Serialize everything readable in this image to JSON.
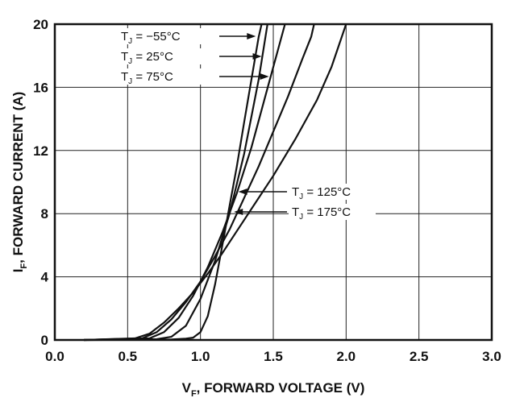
{
  "chart_data": {
    "type": "line",
    "xlabel_main": "V",
    "xlabel_sub": "F",
    "xlabel_rest": ", FORWARD VOLTAGE (V)",
    "ylabel_main": "I",
    "ylabel_sub": "F",
    "ylabel_rest": ", FORWARD CURRENT (A)",
    "xlim": [
      0,
      3.0
    ],
    "ylim": [
      0,
      20
    ],
    "x_ticks": [
      "0.0",
      "0.5",
      "1.0",
      "1.5",
      "2.0",
      "2.5",
      "3.0"
    ],
    "y_ticks": [
      "0",
      "4",
      "8",
      "12",
      "16",
      "20"
    ],
    "grid": true,
    "series": [
      {
        "name_main": "T",
        "name_sub": "J",
        "name_rest": " = −55°C",
        "points": [
          [
            0.2,
            0
          ],
          [
            0.8,
            0.03
          ],
          [
            0.9,
            0.08
          ],
          [
            0.95,
            0.15
          ],
          [
            1.0,
            0.5
          ],
          [
            1.05,
            1.5
          ],
          [
            1.1,
            3.5
          ],
          [
            1.15,
            6.0
          ],
          [
            1.2,
            8.5
          ],
          [
            1.25,
            11.0
          ],
          [
            1.3,
            13.8
          ],
          [
            1.35,
            16.5
          ],
          [
            1.4,
            19.2
          ],
          [
            1.42,
            20
          ]
        ]
      },
      {
        "name_main": "T",
        "name_sub": "J",
        "name_rest": " = 25°C",
        "points": [
          [
            0.2,
            0
          ],
          [
            0.7,
            0.05
          ],
          [
            0.8,
            0.2
          ],
          [
            0.9,
            0.9
          ],
          [
            1.0,
            2.6
          ],
          [
            1.1,
            5.0
          ],
          [
            1.2,
            8.0
          ],
          [
            1.3,
            11.8
          ],
          [
            1.4,
            16.5
          ],
          [
            1.46,
            20
          ]
        ]
      },
      {
        "name_main": "T",
        "name_sub": "J",
        "name_rest": " = 75°C",
        "points": [
          [
            0.2,
            0
          ],
          [
            0.65,
            0.1
          ],
          [
            0.75,
            0.5
          ],
          [
            0.85,
            1.4
          ],
          [
            0.95,
            2.8
          ],
          [
            1.05,
            4.6
          ],
          [
            1.15,
            6.8
          ],
          [
            1.25,
            9.3
          ],
          [
            1.35,
            12.2
          ],
          [
            1.45,
            15.6
          ],
          [
            1.58,
            20
          ]
        ]
      },
      {
        "name_main": "T",
        "name_sub": "J",
        "name_rest": " = 125°C",
        "points": [
          [
            0.2,
            0
          ],
          [
            0.6,
            0.1
          ],
          [
            0.7,
            0.5
          ],
          [
            0.8,
            1.3
          ],
          [
            0.9,
            2.4
          ],
          [
            1.0,
            3.7
          ],
          [
            1.1,
            5.3
          ],
          [
            1.2,
            7.0
          ],
          [
            1.3,
            9.0
          ],
          [
            1.4,
            11.0
          ],
          [
            1.5,
            13.2
          ],
          [
            1.6,
            15.4
          ],
          [
            1.7,
            17.8
          ],
          [
            1.76,
            19.2
          ],
          [
            1.78,
            20
          ]
        ]
      },
      {
        "name_main": "T",
        "name_sub": "J",
        "name_rest": " = 175°C",
        "points": [
          [
            0.2,
            0
          ],
          [
            0.55,
            0.1
          ],
          [
            0.65,
            0.4
          ],
          [
            0.75,
            1.1
          ],
          [
            0.85,
            2.0
          ],
          [
            0.95,
            3.0
          ],
          [
            1.05,
            4.2
          ],
          [
            1.15,
            5.5
          ],
          [
            1.25,
            6.9
          ],
          [
            1.35,
            8.3
          ],
          [
            1.5,
            10.4
          ],
          [
            1.65,
            12.7
          ],
          [
            1.8,
            15.2
          ],
          [
            1.9,
            17.3
          ],
          [
            2.0,
            20
          ]
        ]
      }
    ],
    "annotations": [
      {
        "series": 0,
        "point": [
          1.38,
          18.6
        ],
        "side": "left"
      },
      {
        "series": 1,
        "point": [
          1.42,
          17.5
        ],
        "side": "left"
      },
      {
        "series": 2,
        "point": [
          1.47,
          16.2
        ],
        "side": "left"
      },
      {
        "series": 3,
        "point": [
          1.26,
          8.9
        ],
        "side": "right"
      },
      {
        "series": 4,
        "point": [
          1.23,
          7.7
        ],
        "side": "right"
      }
    ]
  }
}
